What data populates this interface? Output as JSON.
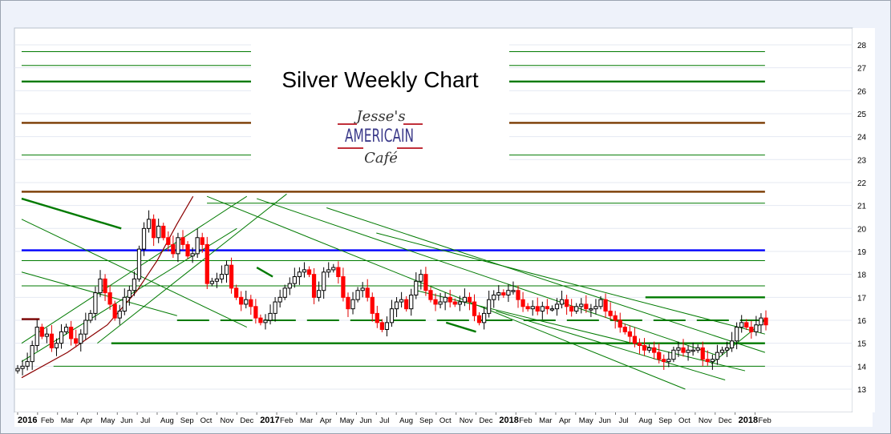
{
  "chart_data": {
    "type": "candlestick",
    "title": "Silver Weekly Chart",
    "logo_text": [
      "Jesse's",
      "AMERICAIN",
      "Café"
    ],
    "frequency": "weekly",
    "y_axis": {
      "position": "right",
      "ylim": [
        12.5,
        28.8
      ],
      "ticks": [
        13,
        14,
        15,
        16,
        17,
        18,
        19,
        20,
        21,
        22,
        23,
        24,
        25,
        26,
        27,
        28
      ]
    },
    "x_tick_labels": [
      "2016",
      "Feb",
      "Mar",
      "Apr",
      "May",
      "Jun",
      "Jul",
      "Aug",
      "Sep",
      "Oct",
      "Nov",
      "Dec",
      "2017",
      "Feb",
      "Mar",
      "Apr",
      "May",
      "Jun",
      "Jul",
      "Aug",
      "Sep",
      "Oct",
      "Nov",
      "Dec",
      "2018",
      "Feb",
      "Mar",
      "Apr",
      "May",
      "Jun",
      "Jul",
      "Aug",
      "Sep",
      "Oct",
      "Nov",
      "Dec",
      "2018",
      "Feb"
    ],
    "closes": [
      13.9,
      14.0,
      14.2,
      14.9,
      15.7,
      15.3,
      15.4,
      14.8,
      15.0,
      15.5,
      15.7,
      15.2,
      15.0,
      15.4,
      16.0,
      16.3,
      17.2,
      17.8,
      17.2,
      16.7,
      16.1,
      16.4,
      17.0,
      17.3,
      17.8,
      19.1,
      20.0,
      20.4,
      19.6,
      20.1,
      19.6,
      19.3,
      18.9,
      19.6,
      19.3,
      18.8,
      18.9,
      19.6,
      19.3,
      17.6,
      17.7,
      17.8,
      18.0,
      18.4,
      17.4,
      17.0,
      16.7,
      16.9,
      16.6,
      16.1,
      15.9,
      16.0,
      16.3,
      16.8,
      17.0,
      17.4,
      17.6,
      17.9,
      18.1,
      18.2,
      18.0,
      17.0,
      17.3,
      18.1,
      18.2,
      18.3,
      17.9,
      17.0,
      16.5,
      16.9,
      17.3,
      17.4,
      17.0,
      16.3,
      15.9,
      15.6,
      15.9,
      16.5,
      16.8,
      16.9,
      16.5,
      17.1,
      17.7,
      18.0,
      17.3,
      16.9,
      16.7,
      16.8,
      17.0,
      16.8,
      16.7,
      16.8,
      17.0,
      16.8,
      16.2,
      15.9,
      16.3,
      16.9,
      17.1,
      17.2,
      17.1,
      17.3,
      17.3,
      16.9,
      16.6,
      16.5,
      16.6,
      16.4,
      16.6,
      16.5,
      16.5,
      16.7,
      16.9,
      16.6,
      16.4,
      16.6,
      16.7,
      16.5,
      16.5,
      16.6,
      16.9,
      16.4,
      16.2,
      16.0,
      15.7,
      15.5,
      15.3,
      15.0,
      14.9,
      14.7,
      14.8,
      14.6,
      14.3,
      14.2,
      14.3,
      14.7,
      14.8,
      14.6,
      14.7,
      14.7,
      14.8,
      14.3,
      14.2,
      14.3,
      14.6,
      14.7,
      14.8,
      15.1,
      15.7,
      15.9,
      15.7,
      15.5,
      15.8,
      16.1,
      15.8
    ],
    "colors": {
      "up": "#ffffff",
      "down": "#ff0000",
      "trend": "#007a00",
      "support": "#007a00",
      "resistance_brown": "#7a3a00",
      "blue": "#0000ff",
      "curve": "#8b0000"
    },
    "horizontal_lines": [
      {
        "price": 27.7,
        "color": "#007a00",
        "from_month": 0.2,
        "to_month": 37.5,
        "style": "thin"
      },
      {
        "price": 27.1,
        "color": "#007a00",
        "from_month": 0.2,
        "to_month": 37.5,
        "style": "thin"
      },
      {
        "price": 26.4,
        "color": "#007a00",
        "from_month": 0.2,
        "to_month": 37.5,
        "style": "thick"
      },
      {
        "price": 24.6,
        "color": "#7a3a00",
        "from_month": 0.2,
        "to_month": 37.5,
        "style": "thick"
      },
      {
        "price": 23.2,
        "color": "#007a00",
        "from_month": 0.2,
        "to_month": 37.5,
        "style": "thin"
      },
      {
        "price": 21.6,
        "color": "#7a3a00",
        "from_month": 0.2,
        "to_month": 37.5,
        "style": "thick"
      },
      {
        "price": 21.1,
        "color": "#007a00",
        "from_month": 9.5,
        "to_month": 37.5,
        "style": "thin"
      },
      {
        "price": 19.05,
        "color": "#0000ff",
        "from_month": 0.2,
        "to_month": 37.5,
        "style": "thick"
      },
      {
        "price": 17.0,
        "color": "#007a00",
        "from_month": 31.5,
        "to_month": 37.5,
        "style": "thick"
      },
      {
        "price": 16.0,
        "color": "#007a00",
        "from_month": 8,
        "to_month": 37.5,
        "style": "dashed"
      },
      {
        "price": 15.0,
        "color": "#007a00",
        "from_month": 4.7,
        "to_month": 37.5,
        "style": "thick"
      },
      {
        "price": 14.0,
        "color": "#007a00",
        "from_month": 1.8,
        "to_month": 37.5,
        "style": "thin"
      },
      {
        "price": 16.05,
        "color": "#7a0000",
        "from_month": 0.2,
        "to_month": 1.1,
        "style": "thick"
      },
      {
        "price": 18.6,
        "color": "#007a00",
        "from_month": 0.2,
        "to_month": 37.5,
        "style": "thin"
      },
      {
        "price": 17.5,
        "color": "#007a00",
        "from_month": 0.2,
        "to_month": 37.5,
        "style": "thin"
      }
    ],
    "trendlines": [
      {
        "from": [
          0.2,
          21.3
        ],
        "to": [
          5.2,
          20.0
        ],
        "color": "#007a00",
        "style": "thick"
      },
      {
        "from": [
          0.2,
          20.4
        ],
        "to": [
          11.5,
          15.7
        ],
        "color": "#007a00",
        "style": "thin"
      },
      {
        "from": [
          0.2,
          18.1
        ],
        "to": [
          8.0,
          16.2
        ],
        "color": "#007a00",
        "style": "thin"
      },
      {
        "from": [
          0.2,
          14.2
        ],
        "to": [
          11.0,
          20.0
        ],
        "color": "#007a00",
        "style": "thin"
      },
      {
        "from": [
          0.2,
          15.0
        ],
        "to": [
          11.5,
          21.4
        ],
        "color": "#007a00",
        "style": "thin"
      },
      {
        "from": [
          4.0,
          15.0
        ],
        "to": [
          13.5,
          21.5
        ],
        "color": "#007a00",
        "style": "thin"
      },
      {
        "from": [
          9.5,
          21.4
        ],
        "to": [
          33.5,
          13.0
        ],
        "color": "#007a00",
        "style": "thin"
      },
      {
        "from": [
          12.0,
          21.3
        ],
        "to": [
          35.0,
          14.5
        ],
        "color": "#007a00",
        "style": "thin"
      },
      {
        "from": [
          15.5,
          20.9
        ],
        "to": [
          37.5,
          14.6
        ],
        "color": "#007a00",
        "style": "thin"
      },
      {
        "from": [
          18.0,
          19.8
        ],
        "to": [
          37.5,
          15.4
        ],
        "color": "#007a00",
        "style": "thin"
      },
      {
        "from": [
          20.0,
          17.3
        ],
        "to": [
          36.5,
          13.8
        ],
        "color": "#007a00",
        "style": "thin"
      },
      {
        "from": [
          24.0,
          16.4
        ],
        "to": [
          35.5,
          13.4
        ],
        "color": "#007a00",
        "style": "thin"
      },
      {
        "from": [
          34.8,
          14.1
        ],
        "to": [
          37.5,
          16.0
        ],
        "color": "#007a00",
        "style": "thin"
      },
      {
        "from": [
          12.0,
          18.3
        ],
        "to": [
          12.8,
          17.9
        ],
        "color": "#007a00",
        "style": "thick"
      },
      {
        "from": [
          21.5,
          15.9
        ],
        "to": [
          23.0,
          15.5
        ],
        "color": "#007a00",
        "style": "thick"
      }
    ],
    "curve": {
      "points": [
        [
          0.2,
          13.5
        ],
        [
          2.5,
          14.6
        ],
        [
          4.5,
          15.8
        ],
        [
          6.0,
          17.3
        ],
        [
          7.0,
          18.6
        ],
        [
          8.0,
          20.2
        ],
        [
          8.8,
          21.4
        ]
      ],
      "color": "#8b0000"
    }
  }
}
